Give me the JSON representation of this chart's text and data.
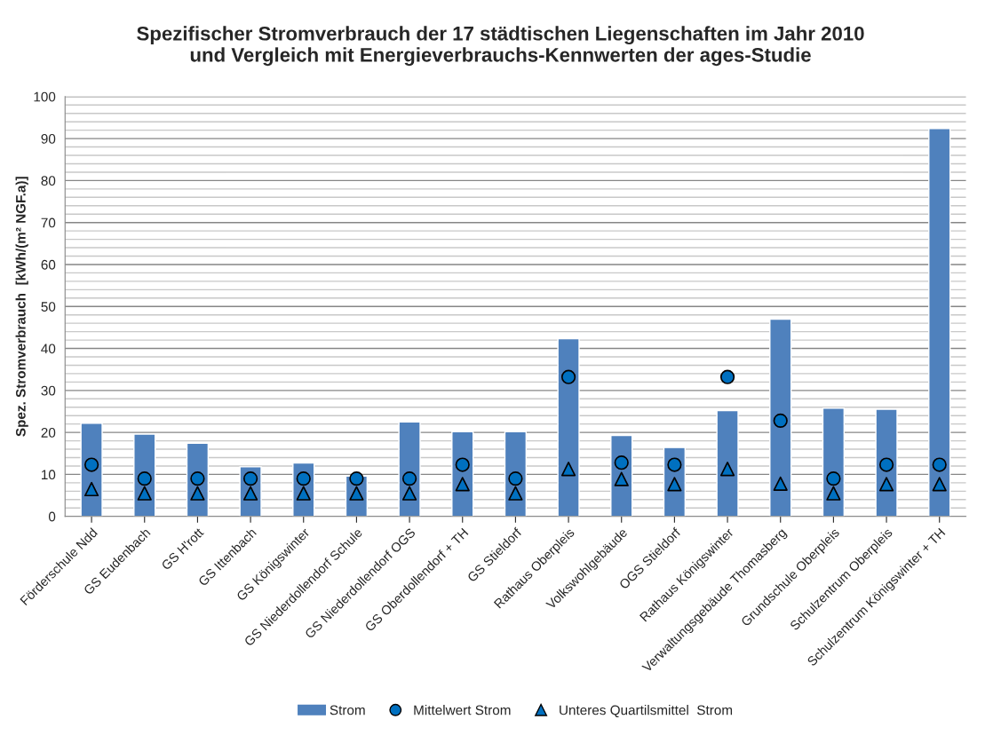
{
  "chart_data": {
    "type": "bar",
    "title": "Spezifischer Stromverbrauch der 17 städtischen Liegenschaften im Jahr 2010\nund Vergleich mit Energieverbrauchs-Kennwerten der ages-Studie",
    "ylabel": "Spez. Stromverbrauch  [kWh/(m² NGF.a)]",
    "categories": [
      "Förderschule Ndd",
      "GS Eudenbach",
      "GS H'rott",
      "GS Ittenbach",
      "GS Königswinter",
      "GS Niederdollendorf Schule",
      "GS Niederdollendorf OGS",
      "GS Oberdollendorf + TH",
      "GS Stieldorf",
      "Rathaus Oberpleis",
      "Volkswohlgebäude",
      "OGS Stieldorf",
      "Rathaus Königswinter",
      "Verwaltungsgebäude Thomasberg",
      "Grundschule Oberpleis",
      "Schulzentrum Oberpleis",
      "Schulzentrum Königswinter + TH"
    ],
    "series": [
      {
        "name": "Strom",
        "color": "#4f81bd",
        "values": [
          22.2,
          19.6,
          17.4,
          11.8,
          12.7,
          9.6,
          22.5,
          20.2,
          20.2,
          42.3,
          19.3,
          16.4,
          25.2,
          47.0,
          25.8,
          25.5,
          92.4
        ]
      },
      {
        "name": "Mittelwert Strom",
        "type": "scatter",
        "marker": "circle",
        "color": "#0070c0",
        "values": [
          12.3,
          9.0,
          9.0,
          9.0,
          9.0,
          9.0,
          9.0,
          12.3,
          9.0,
          33.2,
          12.8,
          12.3,
          33.2,
          22.8,
          9.0,
          12.3,
          12.3
        ]
      },
      {
        "name": "Unteres Quartilsmittel  Strom",
        "type": "scatter",
        "marker": "triangle",
        "color": "#0070c0",
        "values": [
          6.5,
          5.5,
          5.5,
          5.5,
          5.5,
          5.5,
          5.5,
          7.7,
          5.5,
          11.3,
          8.9,
          7.7,
          11.3,
          7.8,
          5.5,
          7.7,
          7.7
        ]
      }
    ],
    "ylim": [
      0,
      100
    ],
    "yticks": [
      0,
      10,
      20,
      30,
      40,
      50,
      60,
      70,
      80,
      90,
      100
    ],
    "grid": "y",
    "legend": "bottom"
  }
}
